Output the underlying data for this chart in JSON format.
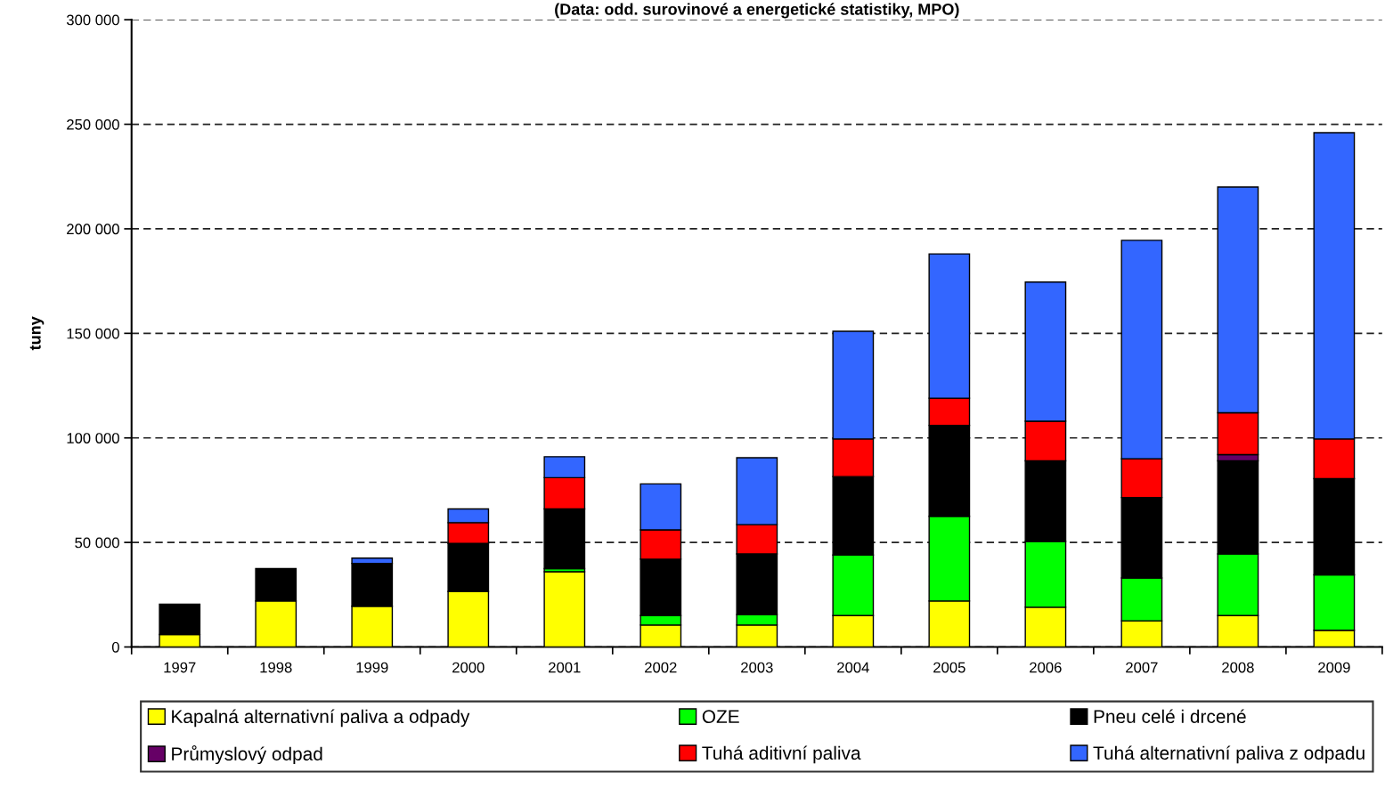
{
  "chart_data": {
    "type": "bar",
    "stacked": true,
    "title": "(Data: odd. surovinové a energetické statistiky, MPO)",
    "ylabel": "tuny",
    "categories": [
      "1997",
      "1998",
      "1999",
      "2000",
      "2001",
      "2002",
      "2003",
      "2004",
      "2005",
      "2006",
      "2007",
      "2008",
      "2009"
    ],
    "series": [
      {
        "name": "Kapalná alternativní paliva a odpady",
        "color": "#ffff00",
        "values": [
          6000,
          22000,
          19500,
          26500,
          36000,
          10500,
          10500,
          15000,
          22000,
          19000,
          12500,
          15000,
          8000
        ]
      },
      {
        "name": "OZE",
        "color": "#00ff00",
        "values": [
          0,
          0,
          0,
          0,
          1500,
          4500,
          5000,
          29000,
          40500,
          31500,
          20500,
          29500,
          26500
        ]
      },
      {
        "name": "Pneu celé i drcené",
        "color": "#000000",
        "values": [
          14500,
          15500,
          20500,
          23000,
          28500,
          27000,
          29000,
          37500,
          43500,
          38500,
          38500,
          44500,
          46000
        ]
      },
      {
        "name": "Průmyslový odpad",
        "color": "#660066",
        "values": [
          0,
          0,
          0,
          0,
          0,
          0,
          0,
          0,
          0,
          0,
          0,
          3000,
          0
        ]
      },
      {
        "name": "Tuhá aditivní paliva",
        "color": "#ff0000",
        "values": [
          0,
          0,
          0,
          10000,
          15000,
          14000,
          14000,
          18000,
          13000,
          19000,
          18500,
          20000,
          19000
        ]
      },
      {
        "name": "Tuhá alternativní paliva z odpadu",
        "color": "#3366ff",
        "values": [
          0,
          0,
          2500,
          6500,
          10000,
          22000,
          32000,
          51500,
          69000,
          66500,
          104500,
          108000,
          146500
        ]
      }
    ],
    "ylim": [
      0,
      300000
    ],
    "yticks": [
      {
        "value": 0,
        "label": "0"
      },
      {
        "value": 50000,
        "label": "50 000"
      },
      {
        "value": 100000,
        "label": "100 000"
      },
      {
        "value": 150000,
        "label": "150 000"
      },
      {
        "value": 200000,
        "label": "200 000"
      },
      {
        "value": 250000,
        "label": "250 000"
      },
      {
        "value": 300000,
        "label": "300 000"
      }
    ],
    "grid": "y",
    "line_style": "dashed",
    "legend": "bottom"
  }
}
